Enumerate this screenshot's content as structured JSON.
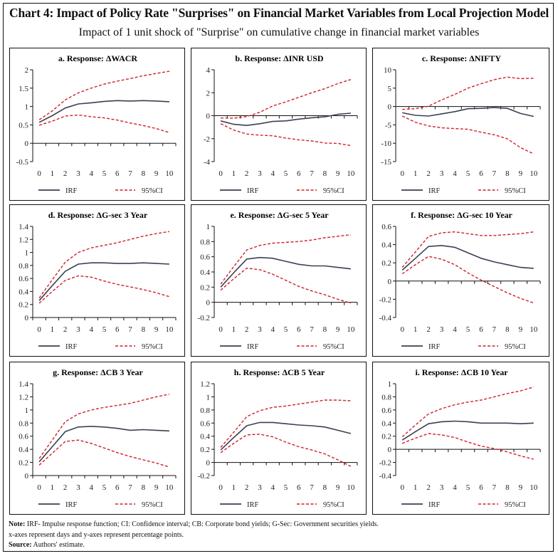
{
  "header": {
    "title": "Chart 4: Impact of Policy Rate \"Surprises\" on Financial Market Variables from Local Projection Model",
    "subtitle": "Impact of 1 unit shock of \"Surprise\" on cumulative change in financial market variables"
  },
  "colors": {
    "irf": "#3a4150",
    "ci": "#d0202a",
    "axis": "#111111"
  },
  "legend": {
    "irf_label": "IRF",
    "ci_label": "95%CI"
  },
  "chart_data": [
    {
      "type": "line",
      "title": "a. Response: ΔWACR",
      "xlabel": "days",
      "ylabel": "percentage points",
      "x": [
        0,
        1,
        2,
        3,
        4,
        5,
        6,
        7,
        8,
        9,
        10
      ],
      "ylim": [
        -0.5,
        2
      ],
      "yticks": [
        -0.5,
        0,
        0.5,
        1,
        1.5,
        2
      ],
      "ytick_labels": [
        "-0.5",
        "0",
        "0.5",
        "1",
        "1.5",
        "2"
      ],
      "grid": false,
      "legend": "bottom",
      "series": [
        {
          "name": "IRF",
          "style": "solid",
          "values": [
            0.57,
            0.75,
            0.96,
            1.07,
            1.1,
            1.14,
            1.16,
            1.15,
            1.16,
            1.15,
            1.13
          ]
        },
        {
          "name": "95%CI upper",
          "style": "dashed",
          "values": [
            0.64,
            0.88,
            1.18,
            1.37,
            1.5,
            1.61,
            1.69,
            1.76,
            1.84,
            1.9,
            1.96
          ]
        },
        {
          "name": "95%CI lower",
          "style": "dashed",
          "values": [
            0.49,
            0.6,
            0.74,
            0.77,
            0.72,
            0.69,
            0.63,
            0.55,
            0.48,
            0.4,
            0.29
          ]
        }
      ]
    },
    {
      "type": "line",
      "title": "b. Response: ΔINR USD",
      "xlabel": "days",
      "ylabel": "percentage points",
      "x": [
        0,
        1,
        2,
        3,
        4,
        5,
        6,
        7,
        8,
        9,
        10
      ],
      "ylim": [
        -4,
        4
      ],
      "yticks": [
        -4,
        -2,
        0,
        2,
        4
      ],
      "ytick_labels": [
        "-4",
        "-2",
        "0",
        "2",
        "4"
      ],
      "grid": false,
      "legend": "bottom",
      "series": [
        {
          "name": "IRF",
          "style": "solid",
          "values": [
            -0.45,
            -0.75,
            -0.85,
            -0.7,
            -0.5,
            -0.45,
            -0.3,
            -0.18,
            -0.1,
            0.12,
            0.22
          ]
        },
        {
          "name": "95%CI upper",
          "style": "dashed",
          "values": [
            -0.2,
            -0.22,
            -0.08,
            0.3,
            0.85,
            1.2,
            1.6,
            2.0,
            2.35,
            2.8,
            3.15
          ]
        },
        {
          "name": "95%CI lower",
          "style": "dashed",
          "values": [
            -0.7,
            -1.25,
            -1.6,
            -1.7,
            -1.75,
            -1.95,
            -2.1,
            -2.2,
            -2.38,
            -2.42,
            -2.6
          ]
        }
      ]
    },
    {
      "type": "line",
      "title": "c. Response: ΔNIFTY",
      "xlabel": "days",
      "ylabel": "percentage points",
      "x": [
        0,
        1,
        2,
        3,
        4,
        5,
        6,
        7,
        8,
        9,
        10
      ],
      "ylim": [
        -15,
        10
      ],
      "yticks": [
        -15,
        -10,
        -5,
        0,
        5,
        10
      ],
      "ytick_labels": [
        "-15",
        "-10",
        "-5",
        "0",
        "5",
        "10"
      ],
      "grid": false,
      "legend": "bottom",
      "series": [
        {
          "name": "IRF",
          "style": "solid",
          "values": [
            -1.7,
            -2.4,
            -2.6,
            -2.0,
            -1.4,
            -0.6,
            -0.5,
            -0.3,
            -0.5,
            -1.9,
            -2.7
          ]
        },
        {
          "name": "95%CI upper",
          "style": "dashed",
          "values": [
            -0.8,
            -0.6,
            0.1,
            1.8,
            3.3,
            5.0,
            6.2,
            7.3,
            8.0,
            7.6,
            7.7
          ]
        },
        {
          "name": "95%CI lower",
          "style": "dashed",
          "values": [
            -2.6,
            -4.3,
            -5.3,
            -5.8,
            -6.0,
            -6.2,
            -7.0,
            -7.7,
            -8.8,
            -11.2,
            -12.9
          ]
        }
      ]
    },
    {
      "type": "line",
      "title": "d. Response: ΔG-sec 3 Year",
      "xlabel": "days",
      "ylabel": "percentage points",
      "x": [
        0,
        1,
        2,
        3,
        4,
        5,
        6,
        7,
        8,
        9,
        10
      ],
      "ylim": [
        0,
        1.4
      ],
      "yticks": [
        0,
        0.2,
        0.4,
        0.6,
        0.8,
        1,
        1.2,
        1.4
      ],
      "ytick_labels": [
        "0",
        "0.2",
        "0.4",
        "0.6",
        "0.8",
        "1",
        "1.2",
        "1.4"
      ],
      "grid": false,
      "legend": "bottom",
      "series": [
        {
          "name": "IRF",
          "style": "solid",
          "values": [
            0.26,
            0.49,
            0.71,
            0.82,
            0.84,
            0.84,
            0.83,
            0.83,
            0.84,
            0.83,
            0.82
          ]
        },
        {
          "name": "95%CI upper",
          "style": "dashed",
          "values": [
            0.3,
            0.58,
            0.85,
            1.0,
            1.07,
            1.11,
            1.15,
            1.2,
            1.25,
            1.29,
            1.32
          ]
        },
        {
          "name": "95%CI lower",
          "style": "dashed",
          "values": [
            0.22,
            0.4,
            0.57,
            0.64,
            0.62,
            0.56,
            0.51,
            0.47,
            0.43,
            0.38,
            0.32
          ]
        }
      ]
    },
    {
      "type": "line",
      "title": "e. Response: ΔG-sec 5 Year",
      "xlabel": "days",
      "ylabel": "percentage points",
      "x": [
        0,
        1,
        2,
        3,
        4,
        5,
        6,
        7,
        8,
        9,
        10
      ],
      "ylim": [
        -0.2,
        1
      ],
      "yticks": [
        -0.2,
        0,
        0.2,
        0.4,
        0.6,
        0.8,
        1
      ],
      "ytick_labels": [
        "-0.2",
        "0",
        "0.2",
        "0.4",
        "0.6",
        "0.8",
        "1"
      ],
      "grid": false,
      "legend": "bottom",
      "series": [
        {
          "name": "IRF",
          "style": "solid",
          "values": [
            0.2,
            0.39,
            0.57,
            0.59,
            0.58,
            0.54,
            0.5,
            0.48,
            0.48,
            0.46,
            0.44
          ]
        },
        {
          "name": "95%CI upper",
          "style": "dashed",
          "values": [
            0.24,
            0.47,
            0.69,
            0.75,
            0.78,
            0.79,
            0.8,
            0.82,
            0.85,
            0.87,
            0.89
          ]
        },
        {
          "name": "95%CI lower",
          "style": "dashed",
          "values": [
            0.16,
            0.31,
            0.45,
            0.43,
            0.37,
            0.29,
            0.21,
            0.15,
            0.1,
            0.04,
            -0.01
          ]
        }
      ]
    },
    {
      "type": "line",
      "title": "f. Response: ΔG-sec 10 Year",
      "xlabel": "days",
      "ylabel": "percentage points",
      "x": [
        0,
        1,
        2,
        3,
        4,
        5,
        6,
        7,
        8,
        9,
        10
      ],
      "ylim": [
        -0.4,
        0.6
      ],
      "yticks": [
        -0.4,
        -0.2,
        0,
        0.2,
        0.4,
        0.6
      ],
      "ytick_labels": [
        "-0.4",
        "-0.2",
        "0",
        "0.2",
        "0.4",
        "0.6"
      ],
      "grid": false,
      "legend": "bottom",
      "series": [
        {
          "name": "IRF",
          "style": "solid",
          "values": [
            0.12,
            0.25,
            0.38,
            0.39,
            0.37,
            0.31,
            0.25,
            0.21,
            0.18,
            0.15,
            0.14
          ]
        },
        {
          "name": "95%CI upper",
          "style": "dashed",
          "values": [
            0.15,
            0.32,
            0.49,
            0.53,
            0.54,
            0.52,
            0.5,
            0.5,
            0.51,
            0.52,
            0.54
          ]
        },
        {
          "name": "95%CI lower",
          "style": "dashed",
          "values": [
            0.08,
            0.18,
            0.27,
            0.24,
            0.18,
            0.09,
            0.01,
            -0.06,
            -0.13,
            -0.19,
            -0.24
          ]
        }
      ]
    },
    {
      "type": "line",
      "title": "g. Response: ΔCB 3 Year",
      "xlabel": "days",
      "ylabel": "percentage points",
      "x": [
        0,
        1,
        2,
        3,
        4,
        5,
        6,
        7,
        8,
        9,
        10
      ],
      "ylim": [
        0,
        1.4
      ],
      "yticks": [
        0,
        0.2,
        0.4,
        0.6,
        0.8,
        1,
        1.2,
        1.4
      ],
      "ytick_labels": [
        "0",
        "0.2",
        "0.4",
        "0.6",
        "0.8",
        "1",
        "1.2",
        "1.4"
      ],
      "grid": false,
      "legend": "bottom",
      "series": [
        {
          "name": "IRF",
          "style": "solid",
          "values": [
            0.21,
            0.44,
            0.67,
            0.74,
            0.75,
            0.74,
            0.72,
            0.69,
            0.7,
            0.69,
            0.68
          ]
        },
        {
          "name": "95%CI upper",
          "style": "dashed",
          "values": [
            0.26,
            0.54,
            0.82,
            0.94,
            1.0,
            1.04,
            1.07,
            1.1,
            1.15,
            1.2,
            1.24
          ]
        },
        {
          "name": "95%CI lower",
          "style": "dashed",
          "values": [
            0.16,
            0.34,
            0.52,
            0.54,
            0.49,
            0.42,
            0.35,
            0.29,
            0.24,
            0.19,
            0.13
          ]
        }
      ]
    },
    {
      "type": "line",
      "title": "h. Response: ΔCB 5 Year",
      "xlabel": "days",
      "ylabel": "percentage points",
      "x": [
        0,
        1,
        2,
        3,
        4,
        5,
        6,
        7,
        8,
        9,
        10
      ],
      "ylim": [
        -0.2,
        1.2
      ],
      "yticks": [
        -0.2,
        0,
        0.2,
        0.4,
        0.6,
        0.8,
        1,
        1.2
      ],
      "ytick_labels": [
        "-0.2",
        "0",
        "0.2",
        "0.4",
        "0.6",
        "0.8",
        "1",
        "1.2"
      ],
      "grid": false,
      "legend": "bottom",
      "series": [
        {
          "name": "IRF",
          "style": "solid",
          "values": [
            0.19,
            0.38,
            0.56,
            0.61,
            0.61,
            0.59,
            0.57,
            0.56,
            0.54,
            0.49,
            0.44
          ]
        },
        {
          "name": "95%CI upper",
          "style": "dashed",
          "values": [
            0.23,
            0.46,
            0.7,
            0.79,
            0.84,
            0.86,
            0.89,
            0.92,
            0.95,
            0.95,
            0.94
          ]
        },
        {
          "name": "95%CI lower",
          "style": "dashed",
          "values": [
            0.15,
            0.29,
            0.42,
            0.43,
            0.39,
            0.31,
            0.24,
            0.19,
            0.13,
            0.04,
            -0.06
          ]
        }
      ]
    },
    {
      "type": "line",
      "title": "i. Response: ΔCB 10 Year",
      "xlabel": "days",
      "ylabel": "percentage points",
      "x": [
        0,
        1,
        2,
        3,
        4,
        5,
        6,
        7,
        8,
        9,
        10
      ],
      "ylim": [
        -0.4,
        1
      ],
      "yticks": [
        -0.4,
        -0.2,
        0,
        0.2,
        0.4,
        0.6,
        0.8,
        1
      ],
      "ytick_labels": [
        "-0.4",
        "-0.2",
        "0",
        "0.2",
        "0.4",
        "0.6",
        "0.8",
        "1"
      ],
      "grid": false,
      "legend": "bottom",
      "series": [
        {
          "name": "IRF",
          "style": "solid",
          "values": [
            0.14,
            0.27,
            0.39,
            0.42,
            0.43,
            0.42,
            0.4,
            0.4,
            0.4,
            0.39,
            0.4
          ]
        },
        {
          "name": "95%CI upper",
          "style": "dashed",
          "values": [
            0.19,
            0.37,
            0.54,
            0.62,
            0.68,
            0.72,
            0.75,
            0.8,
            0.85,
            0.89,
            0.95
          ]
        },
        {
          "name": "95%CI lower",
          "style": "dashed",
          "values": [
            0.09,
            0.17,
            0.24,
            0.22,
            0.18,
            0.11,
            0.05,
            0.01,
            -0.04,
            -0.1,
            -0.15
          ]
        }
      ]
    }
  ],
  "notes": {
    "note_label": "Note:",
    "note_text": " IRF- Impulse response function; CI: Confidence interval; CB: Corporate bond yields; G-Sec: Government securities yields.",
    "note_line2": "x-axes represent days and y-axes represent percentage points.",
    "source_label": "Source:",
    "source_text": " Authors' estimate."
  }
}
